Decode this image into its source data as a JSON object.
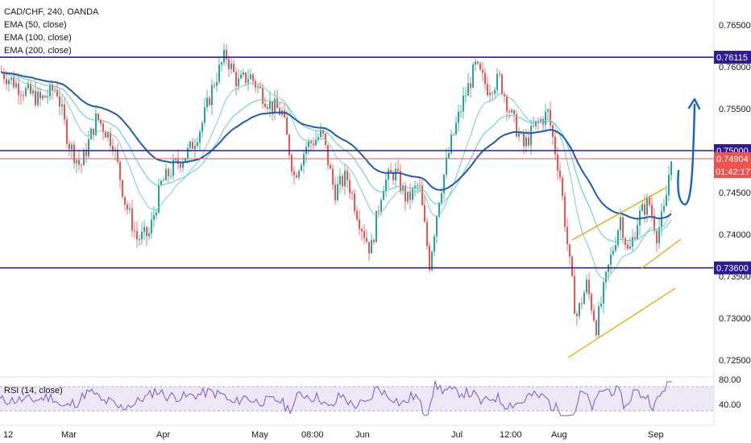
{
  "chart_data": {
    "type": "line",
    "title": "CAD/CHF, 240, OANDA",
    "indicators": [
      "EMA (50, close)",
      "EMA (100, close)",
      "EMA (200, close)"
    ],
    "y_ticks": [
      "0.76500",
      "0.76000",
      "0.75500",
      "0.75000",
      "0.74500",
      "0.74000",
      "0.73500",
      "0.73000",
      "0.72500"
    ],
    "ylim": [
      0.7225,
      0.7675
    ],
    "x_ticks": [
      "12",
      "Mar",
      "Apr",
      "May",
      "08:00",
      "Jun",
      "Jul",
      "12:00",
      "Aug",
      "Sep"
    ],
    "levels": [
      {
        "label": "0.76115",
        "value": 0.76115,
        "color": "#311b92"
      },
      {
        "label": "0.75000",
        "value": 0.75,
        "color": "#311b92"
      },
      {
        "label": "0.74904",
        "value": 0.74904,
        "color": "#ef5350"
      },
      {
        "label": "0.73600",
        "value": 0.736,
        "color": "#311b92"
      }
    ],
    "countdown": "01:42:17",
    "rsi": {
      "label": "RSI (14, close)",
      "ticks": [
        "80.00",
        "40.00"
      ],
      "upper_band": 70,
      "lower_band": 30
    },
    "colors": {
      "up_candle": "#26a69a",
      "down_candle": "#ef5350",
      "ema50": "#80cbc4",
      "ema100": "#4dd0c4",
      "ema200": "#1e5bb5",
      "channel": "#e0a800",
      "arrow": "#1565c0",
      "level_line": "#311b92",
      "rsi_line": "#7e57c2",
      "rsi_band": "#ede7f6"
    }
  }
}
